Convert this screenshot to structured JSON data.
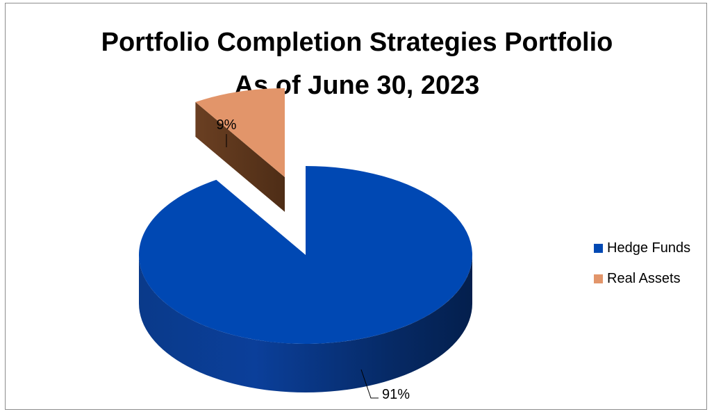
{
  "chart_data": {
    "type": "pie",
    "title": "Portfolio Completion Strategies Portfolio",
    "subtitle": "As of June 30, 2023",
    "slices": [
      {
        "label": "Hedge Funds",
        "value": 91,
        "display": "91%",
        "color": "#0048b3"
      },
      {
        "label": "Real Assets",
        "value": 9,
        "display": "9%",
        "color": "#e2956a"
      }
    ],
    "legend_position": "right",
    "three_d": true,
    "exploded_slice": "Real Assets"
  }
}
